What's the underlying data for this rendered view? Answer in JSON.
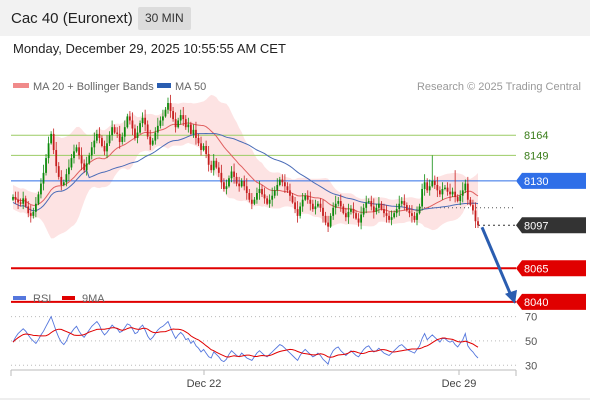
{
  "header": {
    "title": "Cac 40 (Euronext)",
    "interval": "30 MIN",
    "datetime": "Monday, December 29, 2025 10:55:55 AM CET"
  },
  "legend": {
    "ma20": "MA 20 + Bollinger Bands",
    "ma50": "MA 50",
    "credit": "Research © 2025 Trading Central"
  },
  "rsi_legend": {
    "rsi": "RSI",
    "ma": "9MA"
  },
  "colors": {
    "up": "#0b8a0b",
    "down": "#c51d1d",
    "ma20": "#e06060",
    "ma50": "#4b6cb7",
    "bands": "#fde0e0",
    "pivot": "#2f6fe8",
    "support": "#e00000",
    "resistance": "#9ccc65",
    "price_tag": "#333333",
    "rsi": "#5577dd",
    "rsi_ma": "#e00000",
    "arrow": "#2a5db0"
  },
  "chart_data": [
    {
      "type": "candlestick",
      "title": "Cac 40 (Euronext) 30 MIN",
      "x_ticks": [
        "Dec 22",
        "Dec 29"
      ],
      "y_range": [
        8025,
        8220
      ],
      "levels": [
        {
          "value": 8164,
          "label": "8164",
          "kind": "resistance"
        },
        {
          "value": 8149,
          "label": "8149",
          "kind": "resistance"
        },
        {
          "value": 8130,
          "label": "8130",
          "kind": "pivot"
        },
        {
          "value": 8097,
          "label": "8097",
          "kind": "last_price"
        },
        {
          "value": 8065,
          "label": "8065",
          "kind": "support"
        },
        {
          "value": 8040,
          "label": "8040",
          "kind": "support"
        }
      ],
      "forecast_arrow": {
        "from": 8097,
        "to": 8040
      },
      "close": [
        8118,
        8116,
        8114,
        8113,
        8117,
        8111,
        8106,
        8104,
        8107,
        8113,
        8120,
        8128,
        8136,
        8147,
        8158,
        8165,
        8153,
        8141,
        8133,
        8127,
        8129,
        8135,
        8140,
        8147,
        8152,
        8155,
        8149,
        8143,
        8138,
        8143,
        8149,
        8155,
        8160,
        8165,
        8162,
        8156,
        8152,
        8158,
        8164,
        8170,
        8166,
        8165,
        8159,
        8163,
        8170,
        8178,
        8175,
        8169,
        8162,
        8166,
        8173,
        8177,
        8172,
        8163,
        8157,
        8160,
        8166,
        8171,
        8175,
        8178,
        8183,
        8188,
        8182,
        8176,
        8170,
        8175,
        8179,
        8176,
        8170,
        8172,
        8165,
        8168,
        8162,
        8158,
        8153,
        8156,
        8150,
        8142,
        8138,
        8145,
        8140,
        8136,
        8129,
        8124,
        8126,
        8132,
        8137,
        8133,
        8128,
        8126,
        8130,
        8126,
        8121,
        8116,
        8113,
        8116,
        8121,
        8124,
        8120,
        8117,
        8113,
        8116,
        8119,
        8123,
        8127,
        8131,
        8129,
        8126,
        8123,
        8119,
        8114,
        8109,
        8104,
        8111,
        8116,
        8119,
        8116,
        8113,
        8109,
        8111,
        8113,
        8110,
        8104,
        8099,
        8096,
        8104,
        8110,
        8113,
        8115,
        8111,
        8106,
        8103,
        8107,
        8109,
        8106,
        8102,
        8099,
        8105,
        8110,
        8114,
        8115,
        8111,
        8107,
        8110,
        8113,
        8109,
        8106,
        8104,
        8101,
        8103,
        8106,
        8109,
        8113,
        8115,
        8112,
        8108,
        8106,
        8104,
        8101,
        8106,
        8111,
        8124,
        8129,
        8123,
        8126,
        8130,
        8127,
        8123,
        8120,
        8124,
        8125,
        8122,
        8120,
        8122,
        8118,
        8115,
        8119,
        8123,
        8128,
        8116,
        8112,
        8108,
        8100,
        8097
      ]
    },
    {
      "type": "line",
      "title": "RSI",
      "series": [
        {
          "name": "RSI"
        },
        {
          "name": "9MA"
        }
      ],
      "y_ticks": [
        70,
        50,
        30
      ],
      "y_range": [
        22,
        82
      ],
      "rsi": [
        49,
        53,
        56,
        58,
        60,
        58,
        55,
        52,
        50,
        48,
        51,
        55,
        58,
        62,
        66,
        70,
        64,
        58,
        53,
        49,
        47,
        50,
        55,
        57,
        60,
        62,
        58,
        55,
        53,
        56,
        59,
        62,
        64,
        66,
        63,
        58,
        55,
        57,
        60,
        63,
        61,
        60,
        57,
        58,
        61,
        64,
        63,
        60,
        56,
        57,
        61,
        63,
        59,
        54,
        51,
        53,
        56,
        59,
        61,
        62,
        64,
        66,
        61,
        56,
        52,
        55,
        57,
        55,
        51,
        52,
        48,
        50,
        46,
        44,
        41,
        43,
        40,
        37,
        36,
        41,
        39,
        37,
        34,
        33,
        35,
        39,
        42,
        40,
        38,
        37,
        40,
        38,
        36,
        35,
        34,
        37,
        40,
        42,
        40,
        38,
        37,
        39,
        41,
        43,
        45,
        47,
        46,
        44,
        42,
        40,
        38,
        36,
        34,
        38,
        41,
        43,
        41,
        39,
        37,
        38,
        40,
        38,
        35,
        33,
        31,
        38,
        42,
        44,
        45,
        42,
        40,
        38,
        40,
        42,
        40,
        38,
        37,
        40,
        43,
        45,
        46,
        43,
        41,
        42,
        44,
        42,
        40,
        39,
        38,
        40,
        42,
        44,
        46,
        47,
        45,
        43,
        42,
        41,
        40,
        43,
        46,
        52,
        56,
        51,
        53,
        55,
        53,
        51,
        49,
        52,
        52,
        50,
        49,
        50,
        47,
        45,
        48,
        51,
        56,
        46,
        43,
        41,
        38,
        36
      ]
    }
  ]
}
